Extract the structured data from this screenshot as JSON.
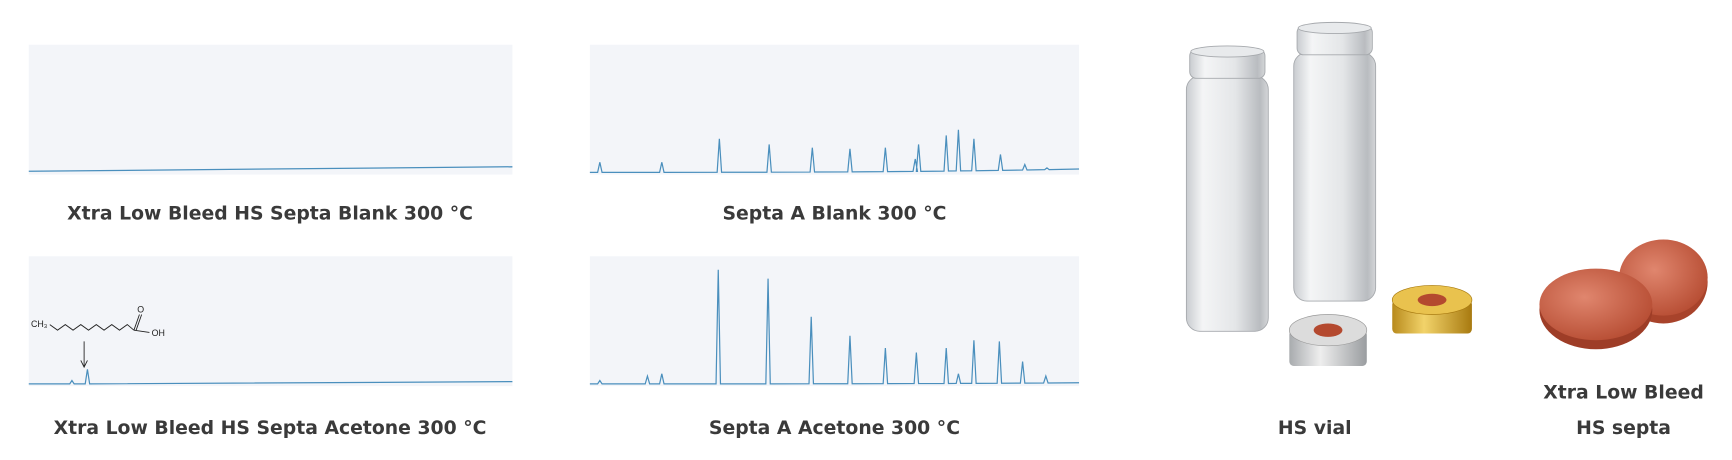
{
  "chromatograms": [
    {
      "caption": "Xtra Low Bleed HS Septa Blank 300 °C"
    },
    {
      "caption": "Septa A Blank 300 °C"
    },
    {
      "caption": "Xtra Low Bleed HS Septa Acetone 300 °C",
      "structure": {
        "left_group": "CH₃",
        "carbonyl": "O",
        "acid_group": "OH"
      }
    },
    {
      "caption": "Septa A Acetone 300 °C"
    }
  ],
  "products": [
    {
      "caption": "HS vial"
    },
    {
      "caption_lines": [
        "Xtra Low Bleed",
        "HS septa"
      ]
    }
  ]
}
